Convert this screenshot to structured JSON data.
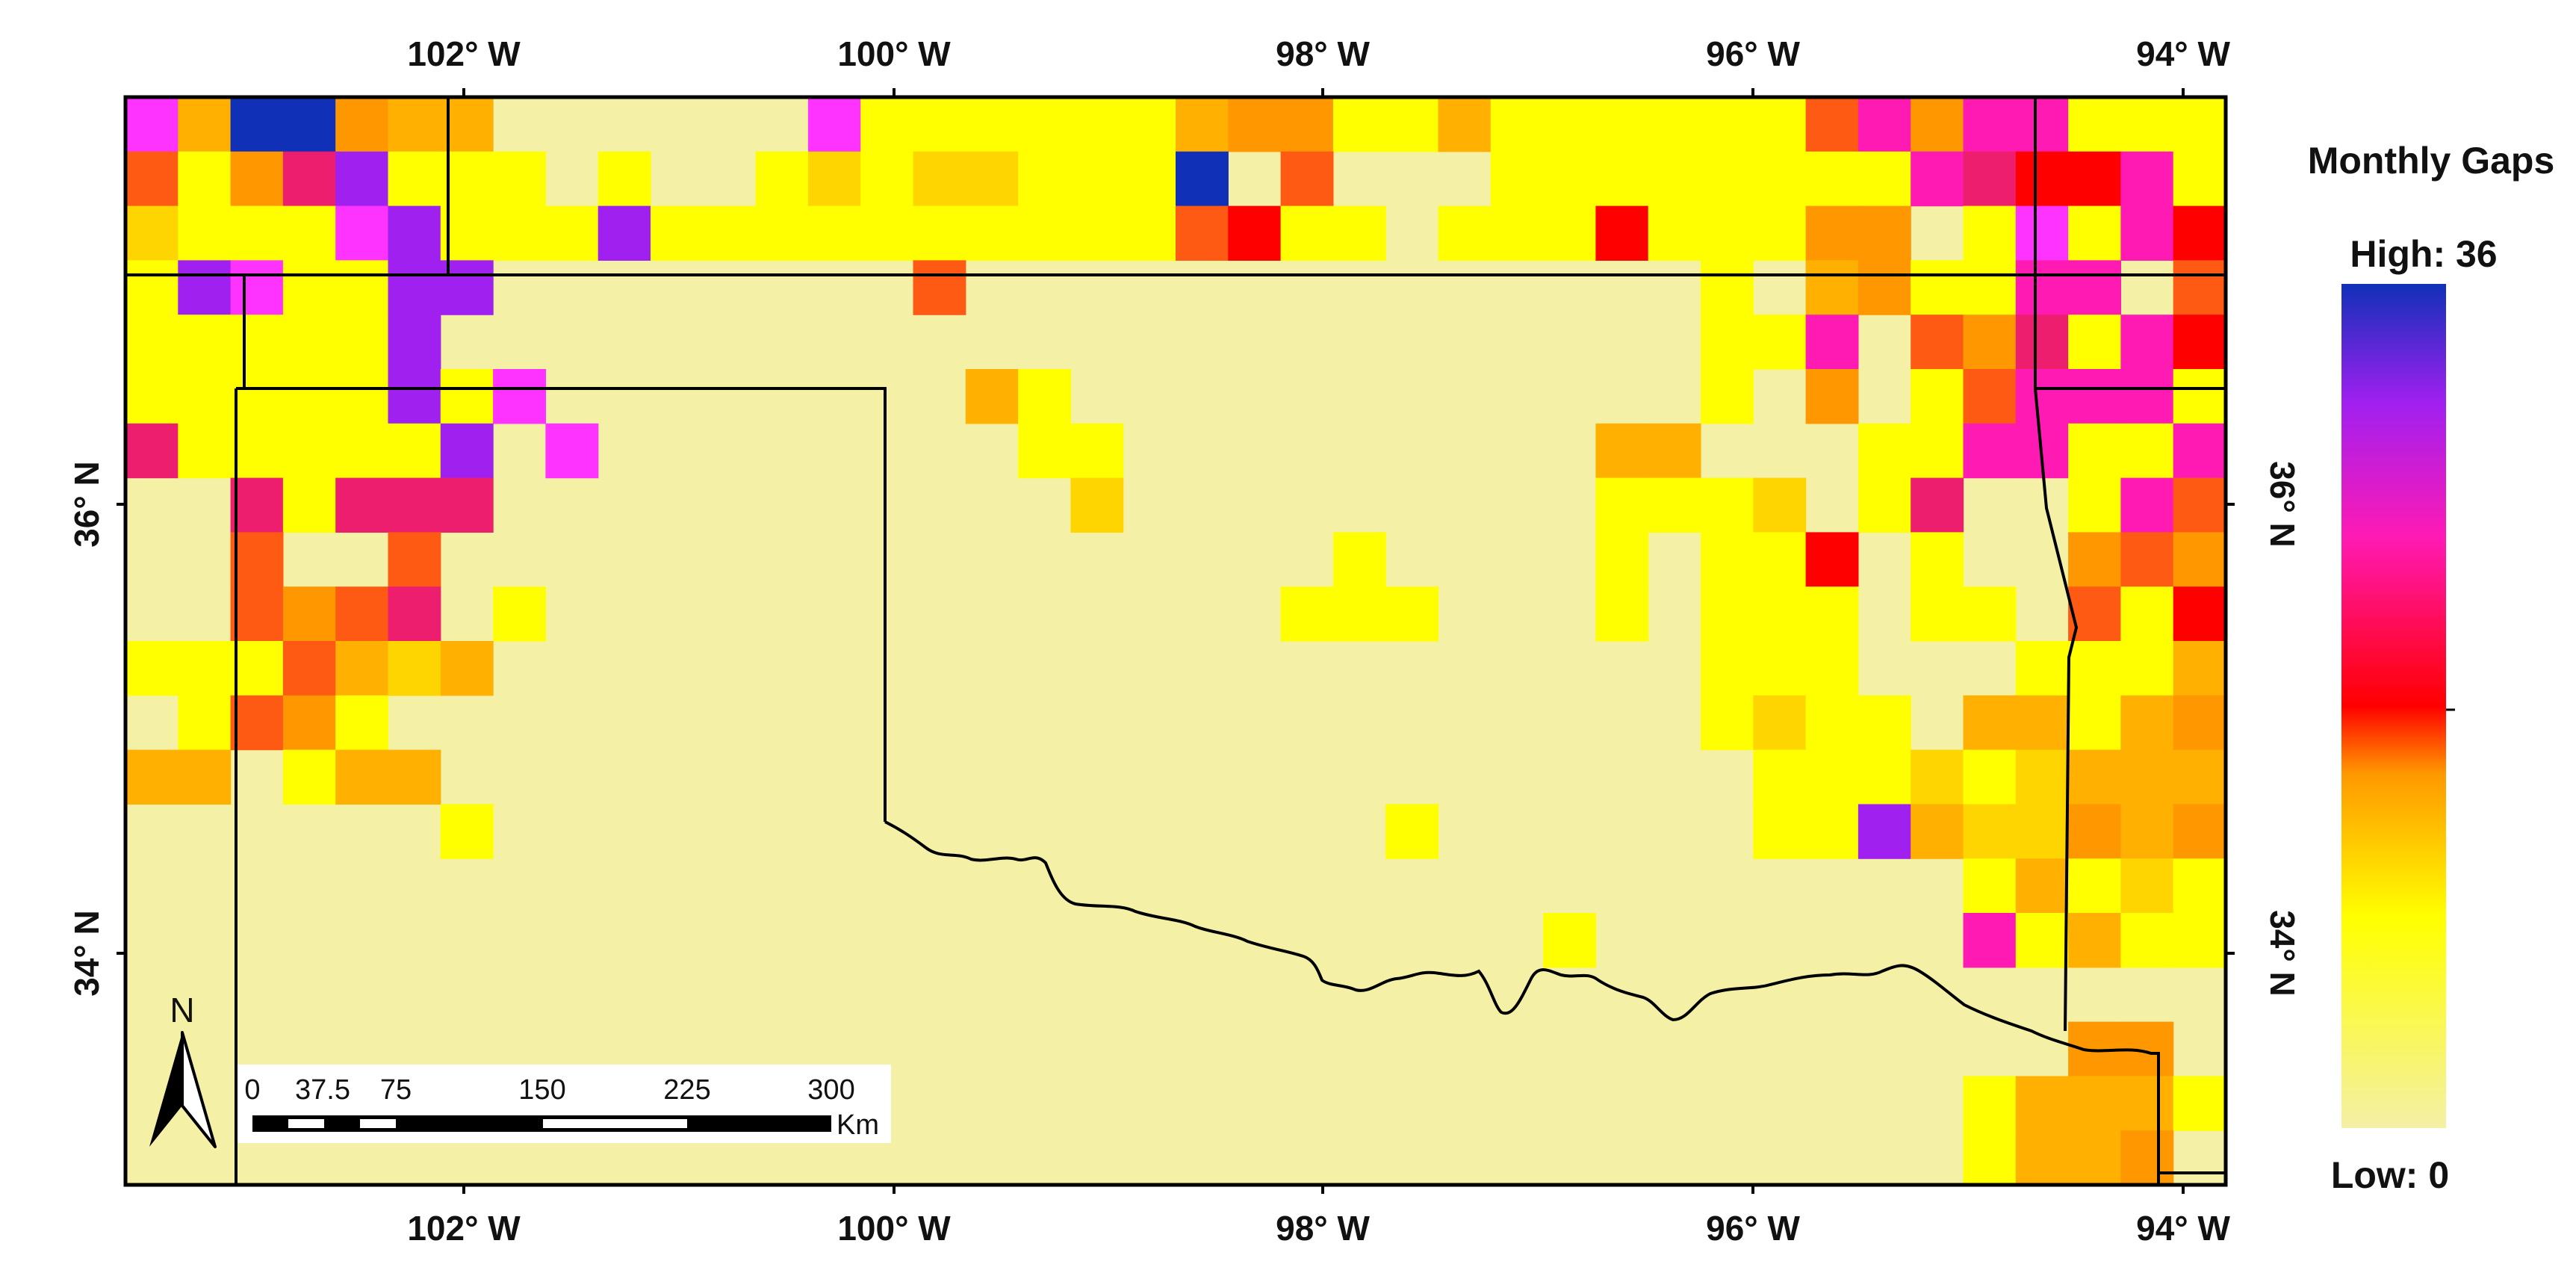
{
  "map": {
    "lon_labels": [
      "102° W",
      "100° W",
      "98° W",
      "96° W",
      "94° W"
    ],
    "lat_labels": [
      "36° N",
      "34° N"
    ],
    "grid_cols": 40,
    "grid_rows": 20,
    "lon_range": [
      -103.6,
      -93.8
    ],
    "background_cell_color": "#f4f0a6",
    "palette": {
      "B": "#f4f0a6",
      "L": "#f8f27a",
      "Y": "#ffff00",
      "G": "#ffd500",
      "A": "#ffb000",
      "O": "#ff9800",
      "R": "#ff5a14",
      "D": "#ff0000",
      "C": "#ee1e6e",
      "M": "#ff1ab4",
      "F": "#ff33ff",
      "P": "#a020f0",
      "N": "#1030b8"
    },
    "cells": [
      "FANNOAABBBBBBFYYYYYYAOOYYAYYYYYYRMOMMYYY",
      "RYOCPYYYBYBBYGYGGYYYNBRBBBYYYYYYYYMCDDMY",
      "GYYYFPYYYPYYYYYYYYYYRDYYBYYYDYYYOOBYFYMD",
      "YPFYYPPBBBBBBBBRBBBBBBBBBBBBBBYBAOYYMMBR",
      "YYYYYPBBBBBBBBBBBBBBBBBBBBBBBBYYMBROCYMD",
      "YYYYYPYFBBBBBBBBAYBBBBBBBBBBBBYBOBYRMMMY",
      "CYYYYYPBFBBBBBBBBYYBBBBBBBBBAABBBYYMMYYM",
      "BBCYCCCBBBBBBBBBBBGBBBBBBBBBYYYGBYCBBYMR",
      "BBRBBRBBBBBBBBBBBBBBBBBYBBBBYBYYDBYBBORO",
      "BBRORCBYBBBBBBBBBBBBBBYYYBBBYBYYYBYYBRYD",
      "YYYRAGABBBBBBBBBBBBBBBBBBBBBBBYYYBBBYYYA",
      "BYROYBBBBBBBBBBBBBBBBBBBBBBBBBYGYYBAAYAO",
      "AABYAABBBBBBBBBBBBBBBBBBBBBBBBBYYYGYGAAA",
      "BBBBBBYBBBBBBBBBBBBBBBBBYBBBBBBYYPAGGOAO",
      "BBBBBBBBBBBBBBBBBBBBBBBBBBBBBBBBBBBYAYGY",
      "BBBBBBBBBBBBBBBBBBBBBBBBBBBYBBBBBBBMYAYY",
      "BBBBBBBBBBBBBBBBBBBBBBBBBBBBBBBBBBBBBBBB",
      "BBBBBBBBBBBBBBBBBBBBBBBBBBBBBBBBBBBBBOOB",
      "BBBBBBBBBBBBBBBBBBBBBBBBBBBBBBBBBBBYAAAY",
      "BBBBBBBBBBBBBBBBBBBBBBBBBBBBBBBBBBBYAAOB"
    ]
  },
  "legend": {
    "title": "Monthly Gaps",
    "high_label": "High: 36",
    "low_label": "Low: 0",
    "stops": [
      "#f4f0a6",
      "#ffff00",
      "#ff9800",
      "#ff0000",
      "#ff1ab4",
      "#a020f0",
      "#1030b8"
    ]
  },
  "scale_bar": {
    "labels": [
      "0",
      "37.5",
      "75",
      "150",
      "225",
      "300"
    ],
    "unit": "Km"
  },
  "north_arrow": {
    "label": "N"
  }
}
